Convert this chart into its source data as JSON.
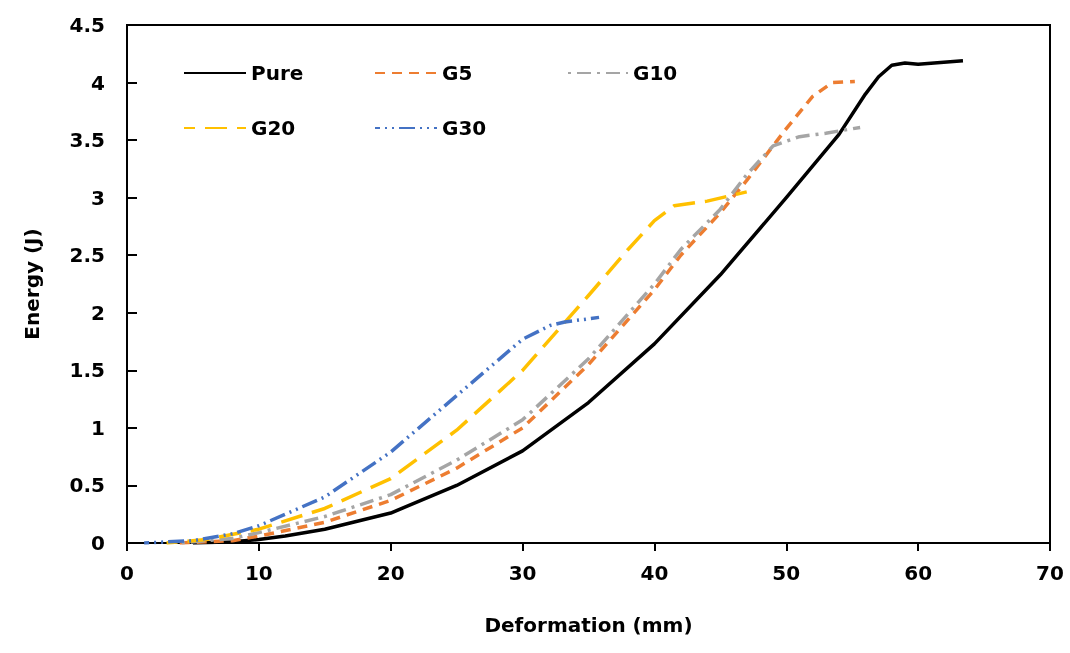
{
  "chart_data": {
    "type": "line",
    "xlabel": "Deformation (mm)",
    "ylabel": "Energy (J)",
    "xlim": [
      0,
      70
    ],
    "xticks": [
      0,
      10,
      20,
      30,
      40,
      50,
      60,
      70
    ],
    "ylim": [
      0,
      4.5
    ],
    "yticks": [
      0,
      0.5,
      1,
      1.5,
      2,
      2.5,
      3,
      3.5,
      4,
      4.5
    ],
    "grid": false,
    "legend": "top left",
    "marker": "none",
    "series": [
      {
        "name": "Pure",
        "color": "#000000",
        "line_style": "solid",
        "x": [
          5,
          8,
          10,
          12,
          15,
          20,
          25,
          30,
          35,
          40,
          45,
          50,
          54,
          56,
          57,
          58,
          59,
          60,
          63.4
        ],
        "values": [
          0,
          0.01,
          0.03,
          0.06,
          0.12,
          0.26,
          0.5,
          0.8,
          1.22,
          1.73,
          2.33,
          3.0,
          3.55,
          3.9,
          4.05,
          4.15,
          4.17,
          4.16,
          4.19
        ]
      },
      {
        "name": "G5",
        "color": "#ed7d31",
        "line_style": "dashed",
        "x": [
          4,
          8,
          10,
          15,
          20,
          25,
          30,
          35,
          40,
          42,
          45,
          47,
          50,
          52,
          53.5,
          55.2
        ],
        "values": [
          0,
          0.02,
          0.06,
          0.18,
          0.37,
          0.65,
          1.0,
          1.55,
          2.2,
          2.5,
          2.87,
          3.15,
          3.6,
          3.88,
          4.0,
          4.01
        ]
      },
      {
        "name": "G10",
        "color": "#a5a5a5",
        "line_style": "dashed",
        "x": [
          4,
          8,
          10,
          15,
          20,
          25,
          30,
          35,
          40,
          42,
          45,
          47,
          49,
          51,
          53,
          55.6
        ],
        "values": [
          0,
          0.04,
          0.09,
          0.23,
          0.42,
          0.72,
          1.07,
          1.6,
          2.25,
          2.55,
          2.9,
          3.2,
          3.45,
          3.53,
          3.56,
          3.61
        ]
      },
      {
        "name": "G20",
        "color": "#ffc000",
        "line_style": "dashed",
        "x": [
          3,
          6,
          10,
          15,
          20,
          25,
          30,
          35,
          38,
          40,
          41.5,
          44,
          47
        ],
        "values": [
          0,
          0.03,
          0.12,
          0.3,
          0.56,
          0.98,
          1.5,
          2.15,
          2.55,
          2.8,
          2.93,
          2.97,
          3.05
        ]
      },
      {
        "name": "G30",
        "color": "#4472c4",
        "line_style": "dashed",
        "x": [
          1.3,
          5,
          8,
          10,
          15,
          20,
          25,
          30,
          32.1,
          33.2,
          35.8
        ],
        "values": [
          0,
          0.02,
          0.08,
          0.15,
          0.4,
          0.79,
          1.28,
          1.77,
          1.89,
          1.92,
          1.96
        ]
      }
    ]
  }
}
